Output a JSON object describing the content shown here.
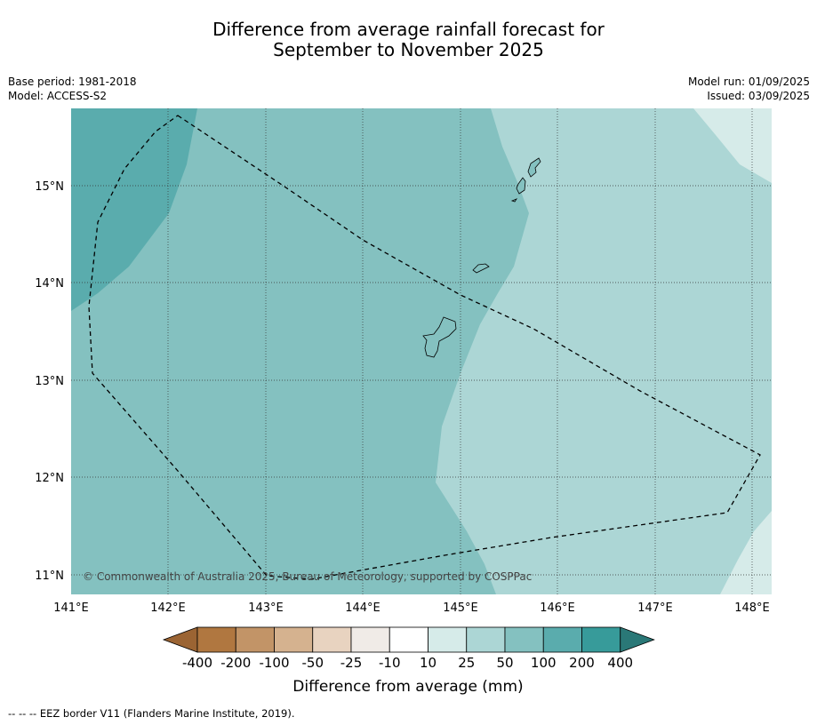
{
  "title": {
    "line1": "Difference from average rainfall forecast for",
    "line2": "September to November 2025"
  },
  "meta_left": {
    "base_period": "Base period: 1981-2018",
    "model": "Model: ACCESS-S2"
  },
  "meta_right": {
    "model_run": "Model run: 01/09/2025",
    "issued": "Issued: 03/09/2025"
  },
  "map": {
    "copyright": "© Commonwealth of Australia 2025, Bureau of Meteorology, supported by COSPPac",
    "lon_ticks": [
      "141°E",
      "142°E",
      "143°E",
      "144°E",
      "145°E",
      "146°E",
      "147°E",
      "148°E"
    ],
    "lat_ticks": [
      "15°N",
      "14°N",
      "13°N",
      "12°N",
      "11°N"
    ],
    "gridlines": true,
    "extent": {
      "lon": [
        141.0,
        148.2
      ],
      "lat": [
        10.8,
        15.8
      ]
    }
  },
  "colorbar": {
    "title": "Difference from average (mm)",
    "labels": [
      "-400",
      "-200",
      "-100",
      "-50",
      "-25",
      "-10",
      "10",
      "25",
      "50",
      "100",
      "200",
      "400"
    ],
    "colors": [
      "#9b6433",
      "#b07740",
      "#c29467",
      "#d5b28f",
      "#e8d3c0",
      "#f0ebe7",
      "#ffffff",
      "#d6ebe9",
      "#acd6d5",
      "#84c1c0",
      "#5aacad",
      "#379b9a",
      "#2a7877"
    ]
  },
  "footer": "-- -- -- EEZ border V11 (Flanders Marine Institute, 2019)."
}
